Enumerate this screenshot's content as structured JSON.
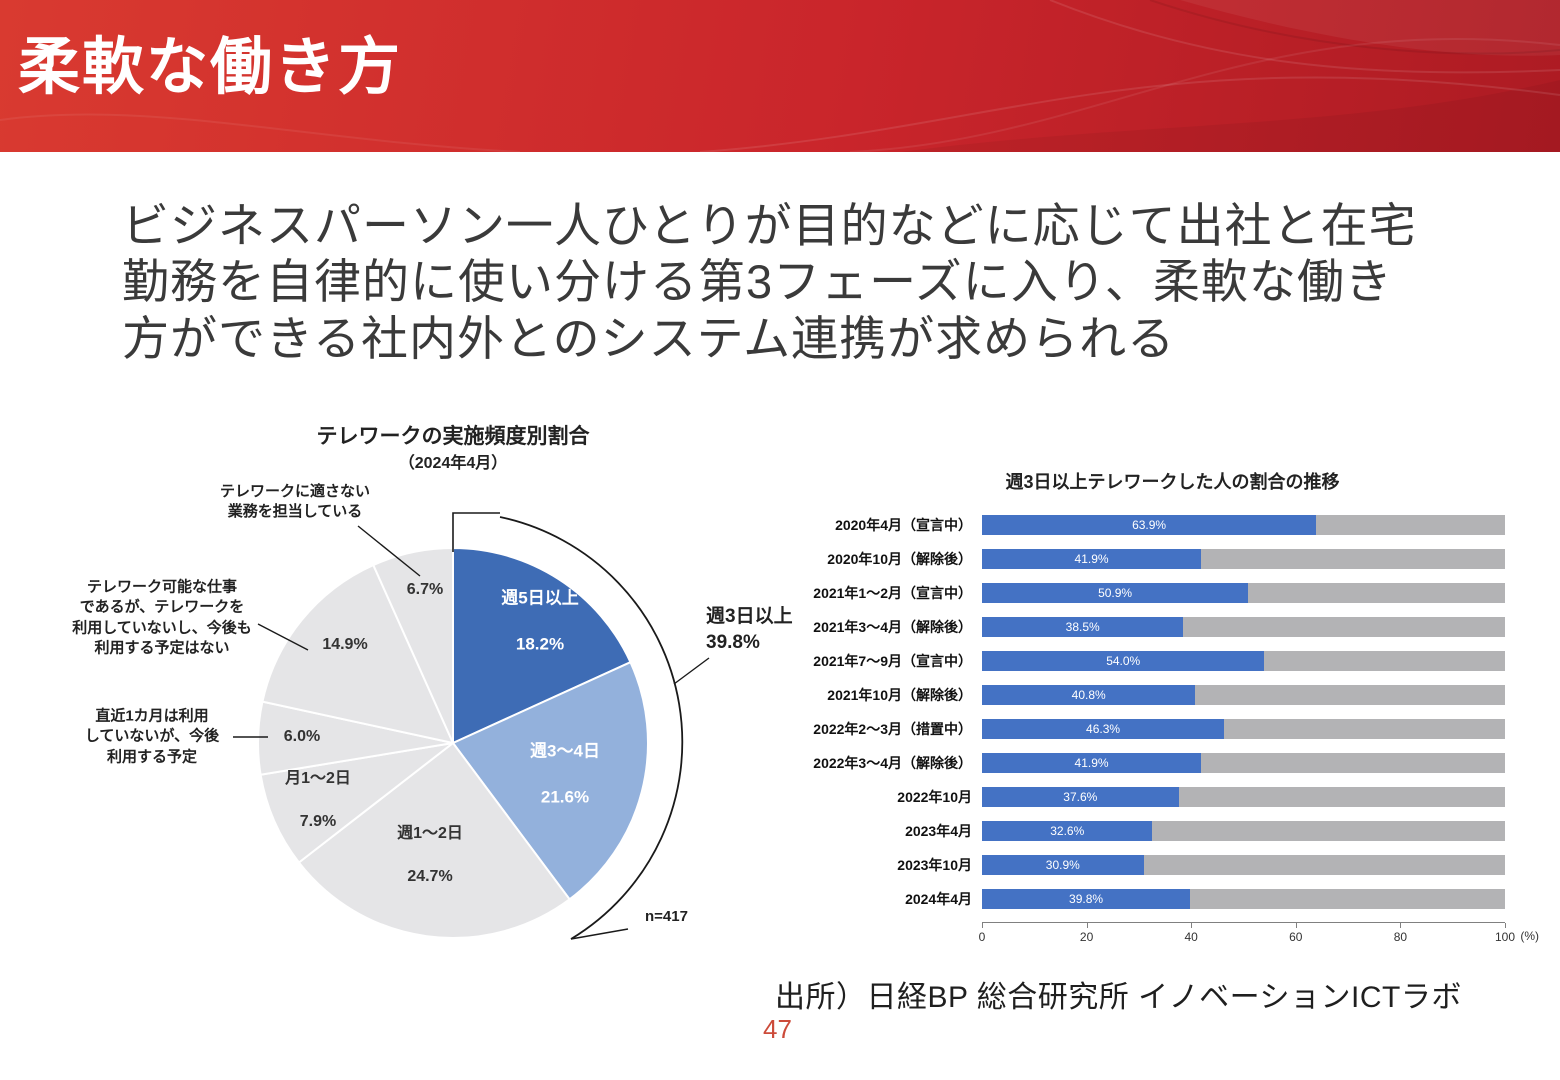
{
  "header": {
    "title": "柔軟な働き方"
  },
  "body_text": "ビジネスパーソン一人ひとりが目的などに応じて出社と在宅\n勤務を自律的に使い分ける第3フェーズに入り、柔軟な働き\n方ができる社内外とのシステム連携が求められる",
  "source": "出所）日経BP 総合研究所 イノベーションICTラボ",
  "page_number": "47",
  "colors": {
    "header_red": "#c9252b",
    "pie_blue_dark": "#3e6cb5",
    "pie_blue_light": "#93b1dc",
    "pie_gray": "#e5e5e7",
    "bar_blue": "#4472c4",
    "bar_track_gray": "#b3b3b5",
    "page_number_red": "#cc4b3a"
  },
  "chart_data": [
    {
      "type": "pie",
      "title": "テレワークの実施頻度別割合",
      "subtitle": "（2024年4月）",
      "start_angle_deg": 0,
      "direction": "clockwise",
      "slices": [
        {
          "key": "week5plus",
          "label": "週5日以上",
          "pct": "18.2%",
          "value": 18.2,
          "color": "#3e6cb5"
        },
        {
          "key": "week3to4",
          "label": "週3〜4日",
          "pct": "21.6%",
          "value": 21.6,
          "color": "#93b1dc"
        },
        {
          "key": "week1to2",
          "label": "週1〜2日",
          "pct": "24.7%",
          "value": 24.7,
          "color": "#e5e5e7"
        },
        {
          "key": "month1to2",
          "label": "月1〜2日",
          "pct": "7.9%",
          "value": 7.9,
          "color": "#e5e5e7"
        },
        {
          "key": "plan-to-use",
          "label": "直近1カ月は利用していないが、今後利用する予定",
          "display": "直近1カ月は利用\nしていないが、今後\n利用する予定",
          "pct": "6.0%",
          "value": 6.0,
          "color": "#e5e5e7"
        },
        {
          "key": "no-plan",
          "label": "テレワーク可能な仕事であるが、テレワークを利用していないし、今後も利用する予定はない",
          "display": "テレワーク可能な仕事\nであるが、テレワークを\n利用していないし、今後も\n利用する予定はない",
          "pct": "14.9%",
          "value": 14.9,
          "color": "#e5e5e7"
        },
        {
          "key": "unsuitable",
          "label": "テレワークに適さない業務を担当している",
          "display": "テレワークに適さない\n業務を担当している",
          "pct": "6.7%",
          "value": 6.7,
          "color": "#e5e5e7"
        }
      ],
      "callouts": {
        "week3plus_label": "週3日以上",
        "week3plus_value": "39.8%",
        "n": "n=417"
      }
    },
    {
      "type": "bar",
      "orientation": "horizontal",
      "title": "週3日以上テレワークした人の割合の推移",
      "categories": [
        "2020年4月（宣言中）",
        "2020年10月（解除後）",
        "2021年1〜2月（宣言中）",
        "2021年3〜4月（解除後）",
        "2021年7〜9月（宣言中）",
        "2021年10月（解除後）",
        "2022年2〜3月（措置中）",
        "2022年3〜4月（解除後）",
        "2022年10月",
        "2023年4月",
        "2023年10月",
        "2024年4月"
      ],
      "values": [
        63.9,
        41.9,
        50.9,
        38.5,
        54.0,
        40.8,
        46.3,
        41.9,
        37.6,
        32.6,
        30.9,
        39.8
      ],
      "value_labels": [
        "63.9%",
        "41.9%",
        "50.9%",
        "38.5%",
        "54.0%",
        "40.8%",
        "46.3%",
        "41.9%",
        "37.6%",
        "32.6%",
        "30.9%",
        "39.8%"
      ],
      "xlim": [
        0,
        100
      ],
      "x_ticks": [
        0,
        20,
        40,
        60,
        80,
        100
      ],
      "x_unit": "(%)",
      "bar_color": "#4472c4",
      "track_color": "#b3b3b5"
    }
  ]
}
